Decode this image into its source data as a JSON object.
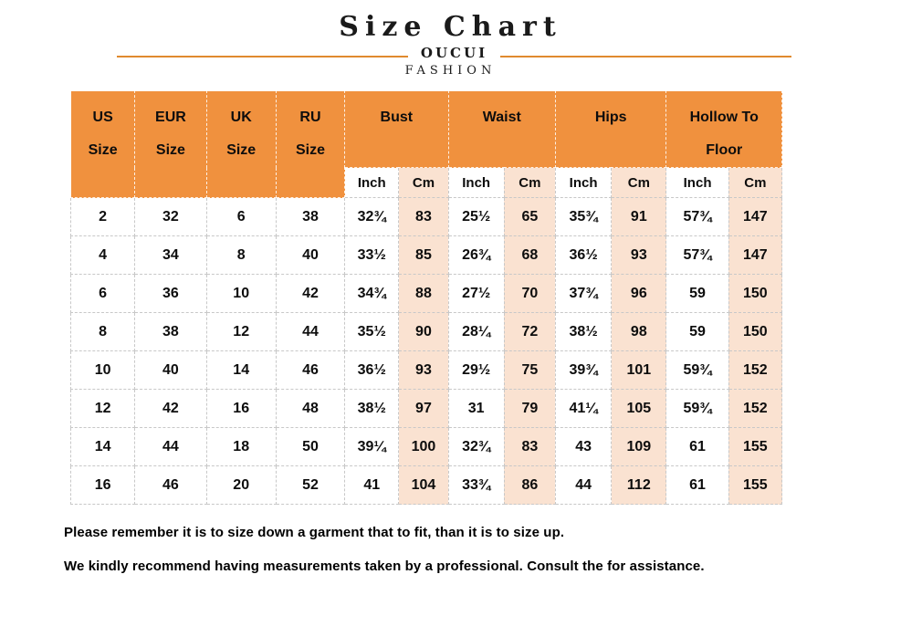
{
  "title": "Size Chart",
  "brand": {
    "name": "OUCUI",
    "tagline": "FASHION"
  },
  "colors": {
    "header_orange": "#f0913e",
    "cm_peach": "#fae2d1",
    "rule_orange": "#e08a2e",
    "cell_border": "#c8c8c8"
  },
  "table": {
    "size_headers": [
      "US\nSize",
      "EUR\nSize",
      "UK\nSize",
      "RU\nSize"
    ],
    "measure_headers": [
      "Bust",
      "Waist",
      "Hips",
      "Hollow To\nFloor"
    ],
    "unit_headers": [
      "Inch",
      "Cm",
      "Inch",
      "Cm",
      "Inch",
      "Cm",
      "Inch",
      "Cm"
    ],
    "rows": [
      [
        "2",
        "32",
        "6",
        "38",
        "32¾",
        "83",
        "25½",
        "65",
        "35¾",
        "91",
        "57¾",
        "147"
      ],
      [
        "4",
        "34",
        "8",
        "40",
        "33½",
        "85",
        "26¾",
        "68",
        "36½",
        "93",
        "57¾",
        "147"
      ],
      [
        "6",
        "36",
        "10",
        "42",
        "34¾",
        "88",
        "27½",
        "70",
        "37¾",
        "96",
        "59",
        "150"
      ],
      [
        "8",
        "38",
        "12",
        "44",
        "35½",
        "90",
        "28¼",
        "72",
        "38½",
        "98",
        "59",
        "150"
      ],
      [
        "10",
        "40",
        "14",
        "46",
        "36½",
        "93",
        "29½",
        "75",
        "39¾",
        "101",
        "59¾",
        "152"
      ],
      [
        "12",
        "42",
        "16",
        "48",
        "38½",
        "97",
        "31",
        "79",
        "41¼",
        "105",
        "59¾",
        "152"
      ],
      [
        "14",
        "44",
        "18",
        "50",
        "39¼",
        "100",
        "32¾",
        "83",
        "43",
        "109",
        "61",
        "155"
      ],
      [
        "16",
        "46",
        "20",
        "52",
        "41",
        "104",
        "33¾",
        "86",
        "44",
        "112",
        "61",
        "155"
      ]
    ]
  },
  "notes": [
    "Please remember it is to size down a garment that to fit, than it is to size up.",
    "We kindly recommend having measurements taken by a professional. Consult the for assistance."
  ]
}
